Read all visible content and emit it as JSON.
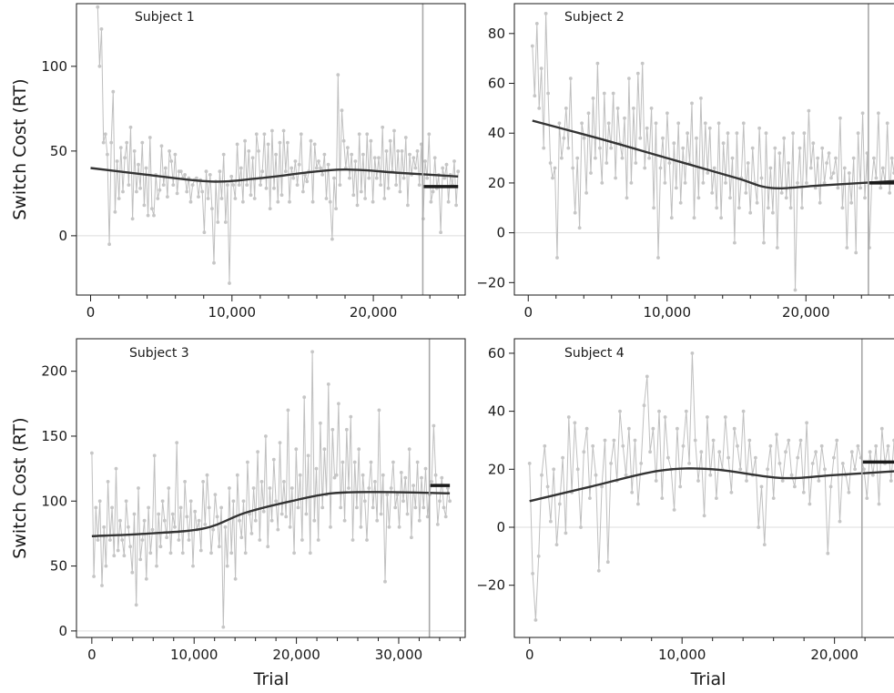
{
  "chart_data": [
    {
      "type": "line",
      "title": "Subject 1",
      "xlabel": "",
      "ylabel": "Switch Cost (RT)",
      "xlim": [
        -1000,
        26500
      ],
      "ylim": [
        -35,
        137
      ],
      "xticks": [
        0,
        10000,
        20000
      ],
      "xtick_labels": [
        "0",
        "10,000",
        "20,000"
      ],
      "yticks": [
        0,
        50,
        100
      ],
      "ytick_labels": [
        "0",
        "50",
        "100"
      ],
      "switch_trial": 23500,
      "smooth": [
        [
          0,
          40
        ],
        [
          4000,
          36
        ],
        [
          8500,
          32
        ],
        [
          12000,
          34
        ],
        [
          17500,
          39
        ],
        [
          22000,
          37
        ],
        [
          26000,
          35
        ]
      ],
      "post_mean": {
        "x": [
          23500,
          26000
        ],
        "y": 29
      },
      "series": [
        {
          "values": [
            135,
            100,
            122,
            55,
            60,
            48,
            -5,
            55,
            85,
            14,
            44,
            22,
            52,
            26,
            46,
            55,
            30,
            64,
            10,
            50,
            26,
            42,
            28,
            55,
            18,
            40,
            12,
            58,
            16,
            12,
            36,
            22,
            27,
            53,
            30,
            40,
            23,
            50,
            44,
            30,
            48,
            25,
            38,
            38,
            34,
            36,
            26,
            34,
            20,
            30,
            33,
            34,
            23,
            33,
            26,
            2,
            38,
            22,
            36,
            16,
            -16,
            32,
            8,
            38,
            22,
            48,
            8,
            30,
            -28,
            35,
            30,
            22,
            54,
            30,
            40,
            20,
            56,
            30,
            50,
            24,
            46,
            22,
            60,
            50,
            30,
            38,
            60,
            28,
            54,
            16,
            62,
            28,
            48,
            20,
            55,
            24,
            62,
            38,
            55,
            20,
            40,
            34,
            44,
            30,
            42,
            60,
            26,
            36,
            32,
            38,
            56,
            20,
            54,
            40,
            44,
            40,
            36,
            48,
            22,
            42,
            20,
            -2,
            34,
            16,
            95,
            30,
            74,
            56,
            40,
            52,
            34,
            48,
            24,
            44,
            18,
            60,
            26,
            48,
            22,
            60,
            34,
            56,
            20,
            46,
            34,
            46,
            30,
            64,
            22,
            50,
            28,
            56,
            38,
            62,
            30,
            50,
            26,
            50,
            34,
            58,
            18,
            48,
            36,
            46,
            40,
            50,
            30,
            54,
            10,
            44,
            34,
            60,
            20,
            26,
            46,
            28,
            36,
            2,
            40,
            34,
            42,
            20,
            36,
            30,
            44,
            18,
            38
          ]
        }
      ]
    },
    {
      "type": "line",
      "title": "Subject 2",
      "xlabel": "",
      "ylabel": "",
      "xlim": [
        -1000,
        27000
      ],
      "ylim": [
        -25,
        92
      ],
      "xticks": [
        0,
        10000,
        20000
      ],
      "xtick_labels": [
        "0",
        "10,000",
        "20,000"
      ],
      "yticks": [
        -20,
        0,
        20,
        40,
        60,
        80
      ],
      "ytick_labels": [
        "−20",
        "0",
        "20",
        "40",
        "60",
        "80"
      ],
      "switch_trial": 24500,
      "smooth": [
        [
          300,
          45
        ],
        [
          5000,
          38
        ],
        [
          10000,
          30
        ],
        [
          15000,
          22
        ],
        [
          17500,
          18
        ],
        [
          21000,
          19
        ],
        [
          27000,
          21
        ]
      ],
      "post_mean": {
        "x": [
          24500,
          27000
        ],
        "y": 20
      },
      "series": [
        {
          "values": [
            75,
            55,
            84,
            50,
            66,
            34,
            88,
            56,
            28,
            22,
            26,
            -10,
            44,
            30,
            38,
            50,
            34,
            62,
            26,
            8,
            30,
            2,
            44,
            38,
            16,
            48,
            24,
            54,
            30,
            68,
            34,
            20,
            56,
            28,
            44,
            34,
            56,
            22,
            50,
            36,
            30,
            46,
            14,
            62,
            20,
            50,
            28,
            64,
            38,
            68,
            26,
            42,
            30,
            50,
            10,
            44,
            -10,
            26,
            38,
            20,
            48,
            28,
            6,
            36,
            18,
            44,
            12,
            34,
            20,
            40,
            28,
            52,
            6,
            38,
            14,
            54,
            20,
            44,
            24,
            42,
            16,
            26,
            10,
            44,
            6,
            36,
            20,
            40,
            14,
            30,
            -4,
            40,
            10,
            22,
            44,
            16,
            28,
            8,
            34,
            20,
            12,
            42,
            22,
            -4,
            40,
            10,
            26,
            8,
            34,
            -6,
            32,
            16,
            38,
            14,
            28,
            10,
            40,
            -23,
            20,
            34,
            10,
            40,
            20,
            49,
            26,
            36,
            18,
            30,
            12,
            34,
            20,
            28,
            32,
            22,
            24,
            30,
            18,
            46,
            10,
            26,
            -6,
            24,
            12,
            30,
            -8,
            40,
            18,
            48,
            14,
            32,
            -6,
            20,
            30,
            22,
            48,
            18,
            26,
            20,
            44,
            16,
            30,
            24,
            40,
            20,
            34,
            22
          ]
        }
      ]
    },
    {
      "type": "line",
      "title": "Subject 3",
      "xlabel": "Trial",
      "ylabel": "Switch Cost (RT)",
      "xlim": [
        -1500,
        36500
      ],
      "ylim": [
        -5,
        225
      ],
      "xticks": [
        0,
        10000,
        20000,
        30000
      ],
      "xtick_labels": [
        "0",
        "10,000",
        "20,000",
        "30,000"
      ],
      "yticks": [
        0,
        50,
        100,
        150,
        200
      ],
      "ytick_labels": [
        "0",
        "50",
        "100",
        "150",
        "200"
      ],
      "switch_trial": 33000,
      "smooth": [
        [
          0,
          73
        ],
        [
          5500,
          75
        ],
        [
          11000,
          79
        ],
        [
          15000,
          91
        ],
        [
          19500,
          100
        ],
        [
          23500,
          106
        ],
        [
          28000,
          107
        ],
        [
          35000,
          106
        ]
      ],
      "post_mean": {
        "x": [
          33000,
          35000
        ],
        "y": 112
      },
      "series": [
        {
          "values": [
            137,
            42,
            95,
            70,
            100,
            35,
            80,
            50,
            115,
            70,
            95,
            58,
            125,
            62,
            85,
            70,
            58,
            100,
            80,
            65,
            45,
            90,
            20,
            110,
            55,
            70,
            85,
            40,
            95,
            60,
            78,
            135,
            50,
            90,
            65,
            100,
            85,
            72,
            110,
            60,
            90,
            80,
            145,
            70,
            95,
            60,
            115,
            88,
            70,
            100,
            50,
            92,
            78,
            85,
            62,
            115,
            82,
            120,
            95,
            60,
            78,
            105,
            88,
            65,
            95,
            3,
            80,
            50,
            110,
            60,
            100,
            40,
            120,
            85,
            72,
            100,
            60,
            130,
            90,
            75,
            110,
            85,
            138,
            70,
            115,
            92,
            150,
            65,
            110,
            85,
            132,
            100,
            78,
            145,
            90,
            115,
            88,
            170,
            80,
            110,
            60,
            140,
            95,
            120,
            70,
            180,
            90,
            135,
            60,
            215,
            85,
            125,
            70,
            160,
            95,
            140,
            105,
            190,
            80,
            155,
            118,
            120,
            175,
            95,
            130,
            85,
            155,
            110,
            165,
            70,
            130,
            95,
            140,
            80,
            120,
            100,
            70,
            110,
            130,
            95,
            115,
            85,
            170,
            90,
            120,
            38,
            105,
            80,
            110,
            130,
            95,
            105,
            80,
            122,
            100,
            118,
            90,
            140,
            72,
            112,
            95,
            130,
            85,
            118,
            95,
            125,
            88,
            105,
            115,
            158,
            120,
            82,
            100,
            118,
            95,
            88,
            110,
            100
          ]
        }
      ]
    },
    {
      "type": "line",
      "title": "Subject 4",
      "xlabel": "Trial",
      "ylabel": "",
      "xlim": [
        -1000,
        24500
      ],
      "ylim": [
        -38,
        65
      ],
      "xticks": [
        0,
        10000,
        20000
      ],
      "xtick_labels": [
        "0",
        "10,000",
        "20,000"
      ],
      "yticks": [
        -20,
        0,
        20,
        40,
        60
      ],
      "ytick_labels": [
        "−20",
        "0",
        "20",
        "40",
        "60"
      ],
      "switch_trial": 21800,
      "smooth": [
        [
          0,
          9
        ],
        [
          4000,
          14
        ],
        [
          8500,
          19.5
        ],
        [
          12000,
          20
        ],
        [
          16500,
          17
        ],
        [
          20000,
          18
        ],
        [
          24500,
          19.5
        ]
      ],
      "post_mean": {
        "x": [
          21800,
          24500
        ],
        "y": 22.5
      },
      "series": [
        {
          "values": [
            22,
            -16,
            -32,
            -10,
            18,
            28,
            14,
            2,
            20,
            -6,
            8,
            24,
            -2,
            38,
            12,
            36,
            20,
            0,
            26,
            34,
            10,
            28,
            18,
            -15,
            14,
            30,
            -12,
            22,
            30,
            16,
            40,
            28,
            18,
            34,
            12,
            30,
            8,
            22,
            42,
            52,
            26,
            34,
            16,
            40,
            10,
            38,
            24,
            20,
            6,
            34,
            14,
            28,
            40,
            22,
            60,
            30,
            16,
            26,
            4,
            38,
            18,
            30,
            10,
            26,
            20,
            38,
            24,
            12,
            34,
            28,
            20,
            40,
            16,
            30,
            18,
            24,
            0,
            14,
            -6,
            20,
            28,
            10,
            32,
            22,
            16,
            26,
            30,
            18,
            14,
            24,
            30,
            12,
            36,
            8,
            22,
            26,
            16,
            28,
            20,
            -9,
            14,
            24,
            30,
            2,
            22,
            18,
            12,
            26,
            20,
            28,
            24,
            20,
            10,
            26,
            18,
            28,
            8,
            34,
            22,
            28,
            16,
            30,
            26,
            22,
            32
          ]
        }
      ]
    }
  ]
}
